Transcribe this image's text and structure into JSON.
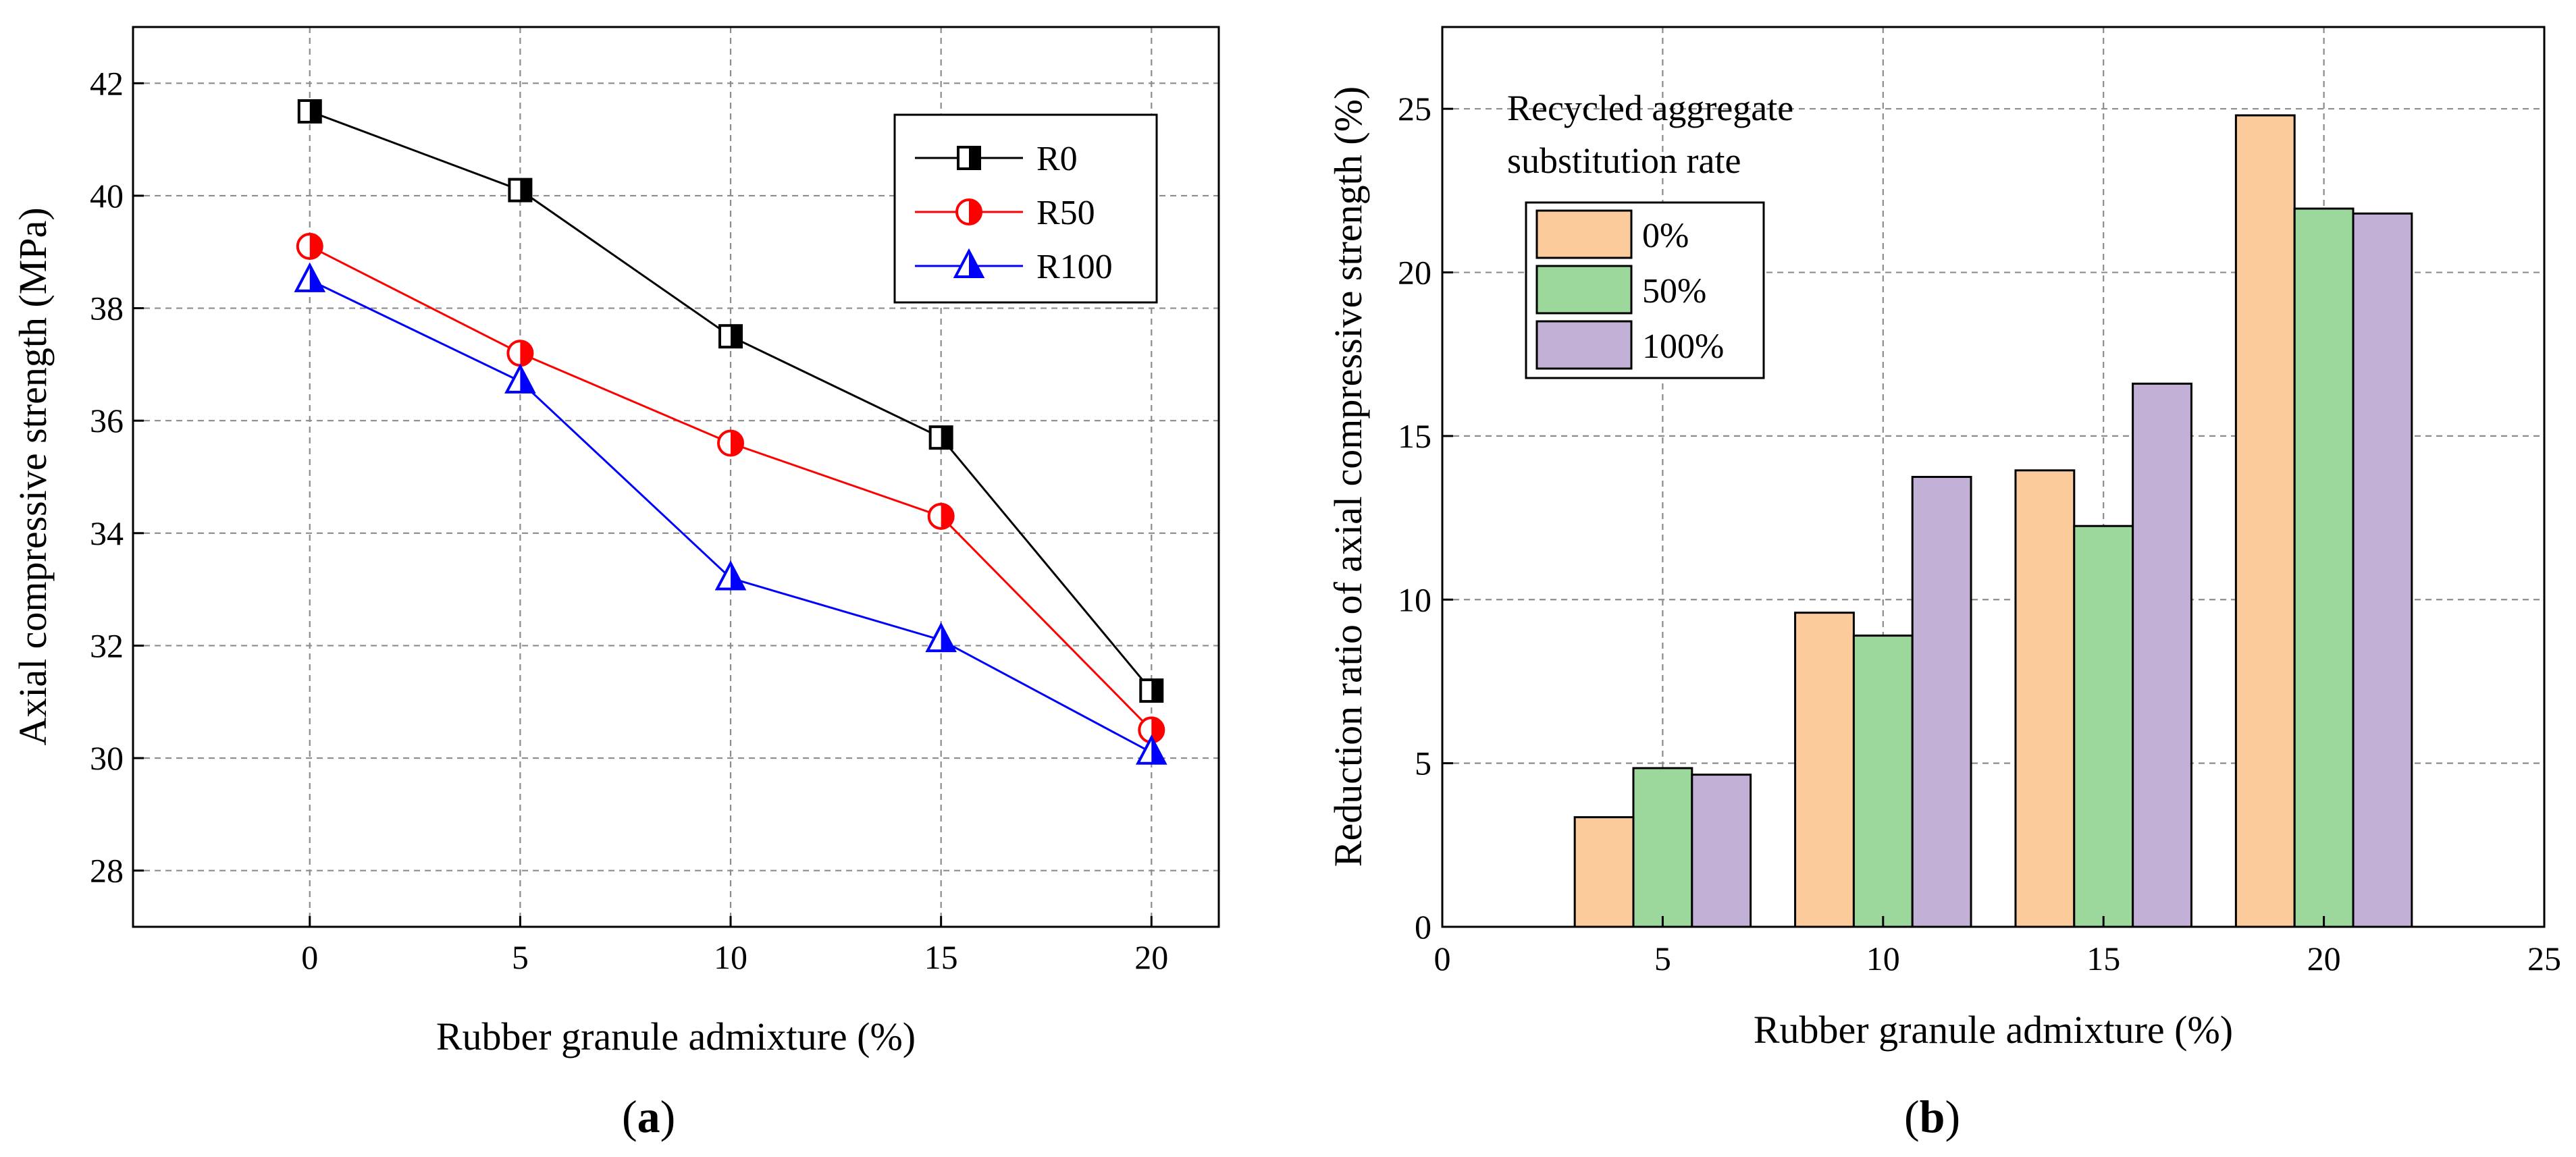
{
  "chart_data": [
    {
      "type": "line",
      "id": "a",
      "caption": "(a)",
      "caption_letter": "a",
      "xlabel": "Rubber granule admixture (%)",
      "ylabel": "Axial compressive strength (MPa)",
      "x": [
        0,
        5,
        10,
        15,
        20
      ],
      "xlim": [
        -4.2,
        21.6
      ],
      "ylim": [
        27,
        43
      ],
      "xticks": [
        0,
        5,
        10,
        15,
        20
      ],
      "yticks": [
        28,
        30,
        32,
        34,
        36,
        38,
        40,
        42
      ],
      "legend_position": "top-right",
      "series": [
        {
          "name": "R0",
          "color": "#000000",
          "marker": "half-filled-square",
          "values": [
            41.5,
            40.1,
            37.5,
            35.7,
            31.2
          ]
        },
        {
          "name": "R50",
          "color": "#ff0000",
          "marker": "half-filled-circle",
          "values": [
            39.1,
            37.2,
            35.6,
            34.3,
            30.5
          ]
        },
        {
          "name": "R100",
          "color": "#0000ff",
          "marker": "half-filled-triangle",
          "values": [
            38.5,
            36.7,
            33.2,
            32.1,
            30.1
          ]
        }
      ]
    },
    {
      "type": "bar",
      "id": "b",
      "caption": "(b)",
      "caption_letter": "b",
      "xlabel": "Rubber granule admixture (%)",
      "ylabel": "Reduction ratio of axial compressive strength (%)",
      "categories": [
        5,
        10,
        15,
        20
      ],
      "xlim": [
        0,
        25
      ],
      "ylim": [
        0,
        27.5
      ],
      "xticks": [
        0,
        5,
        10,
        15,
        20,
        25
      ],
      "yticks": [
        0,
        5,
        10,
        15,
        20,
        25
      ],
      "bar_width": 1.33,
      "legend_title_lines": [
        "Recycled aggregate",
        "substitution rate"
      ],
      "legend_position": "top-left",
      "series": [
        {
          "name": "0%",
          "color": "#fbcb9c",
          "values": [
            3.35,
            9.6,
            13.95,
            24.8
          ]
        },
        {
          "name": "50%",
          "color": "#9cd79c",
          "values": [
            4.85,
            8.9,
            12.25,
            21.95
          ]
        },
        {
          "name": "100%",
          "color": "#c2b0d6",
          "values": [
            4.65,
            13.75,
            16.6,
            21.8
          ]
        }
      ]
    }
  ]
}
